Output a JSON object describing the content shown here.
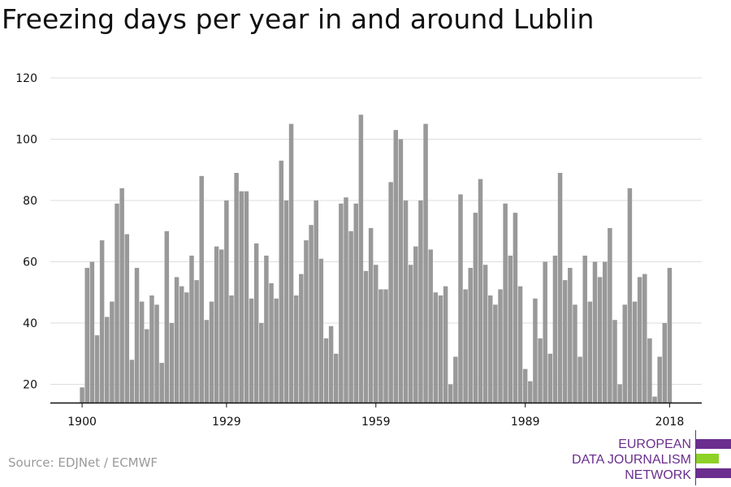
{
  "title": "Freezing days per year in and around Lublin",
  "source": "Source: EDJNet / ECMWF",
  "logo": {
    "lines": [
      "EUROPEAN",
      "DATA JOURNALISM",
      "NETWORK"
    ],
    "colors": {
      "primary": "#6b2e8f",
      "accent": "#8ed127"
    }
  },
  "colors": {
    "bar": "#999999",
    "grid": "#dddddd",
    "axis": "#111111"
  },
  "chart_data": {
    "type": "bar",
    "title": "Freezing days per year in and around Lublin",
    "xlabel": "",
    "ylabel": "",
    "x_start": 1900,
    "x_end": 2018,
    "x_ticks": [
      1900,
      1929,
      1959,
      1989,
      2018
    ],
    "y_ticks": [
      20,
      40,
      60,
      80,
      100,
      120
    ],
    "ylim": [
      14,
      120
    ],
    "grid": true,
    "values": [
      19,
      58,
      60,
      36,
      67,
      42,
      47,
      79,
      84,
      69,
      28,
      58,
      47,
      38,
      49,
      46,
      27,
      70,
      40,
      55,
      52,
      50,
      62,
      54,
      88,
      41,
      47,
      65,
      64,
      80,
      49,
      89,
      83,
      83,
      48,
      66,
      40,
      62,
      53,
      48,
      93,
      80,
      105,
      49,
      56,
      67,
      72,
      80,
      61,
      35,
      39,
      30,
      79,
      81,
      70,
      79,
      108,
      57,
      71,
      59,
      51,
      51,
      86,
      103,
      100,
      80,
      59,
      65,
      80,
      105,
      64,
      50,
      49,
      52,
      20,
      29,
      82,
      51,
      58,
      76,
      87,
      59,
      49,
      46,
      51,
      79,
      62,
      76,
      52,
      25,
      21,
      48,
      35,
      60,
      30,
      62,
      89,
      54,
      58,
      46,
      29,
      62,
      47,
      60,
      55,
      60,
      71,
      41,
      20,
      46,
      84,
      47,
      55,
      56,
      35,
      16,
      29,
      40,
      58
    ]
  }
}
